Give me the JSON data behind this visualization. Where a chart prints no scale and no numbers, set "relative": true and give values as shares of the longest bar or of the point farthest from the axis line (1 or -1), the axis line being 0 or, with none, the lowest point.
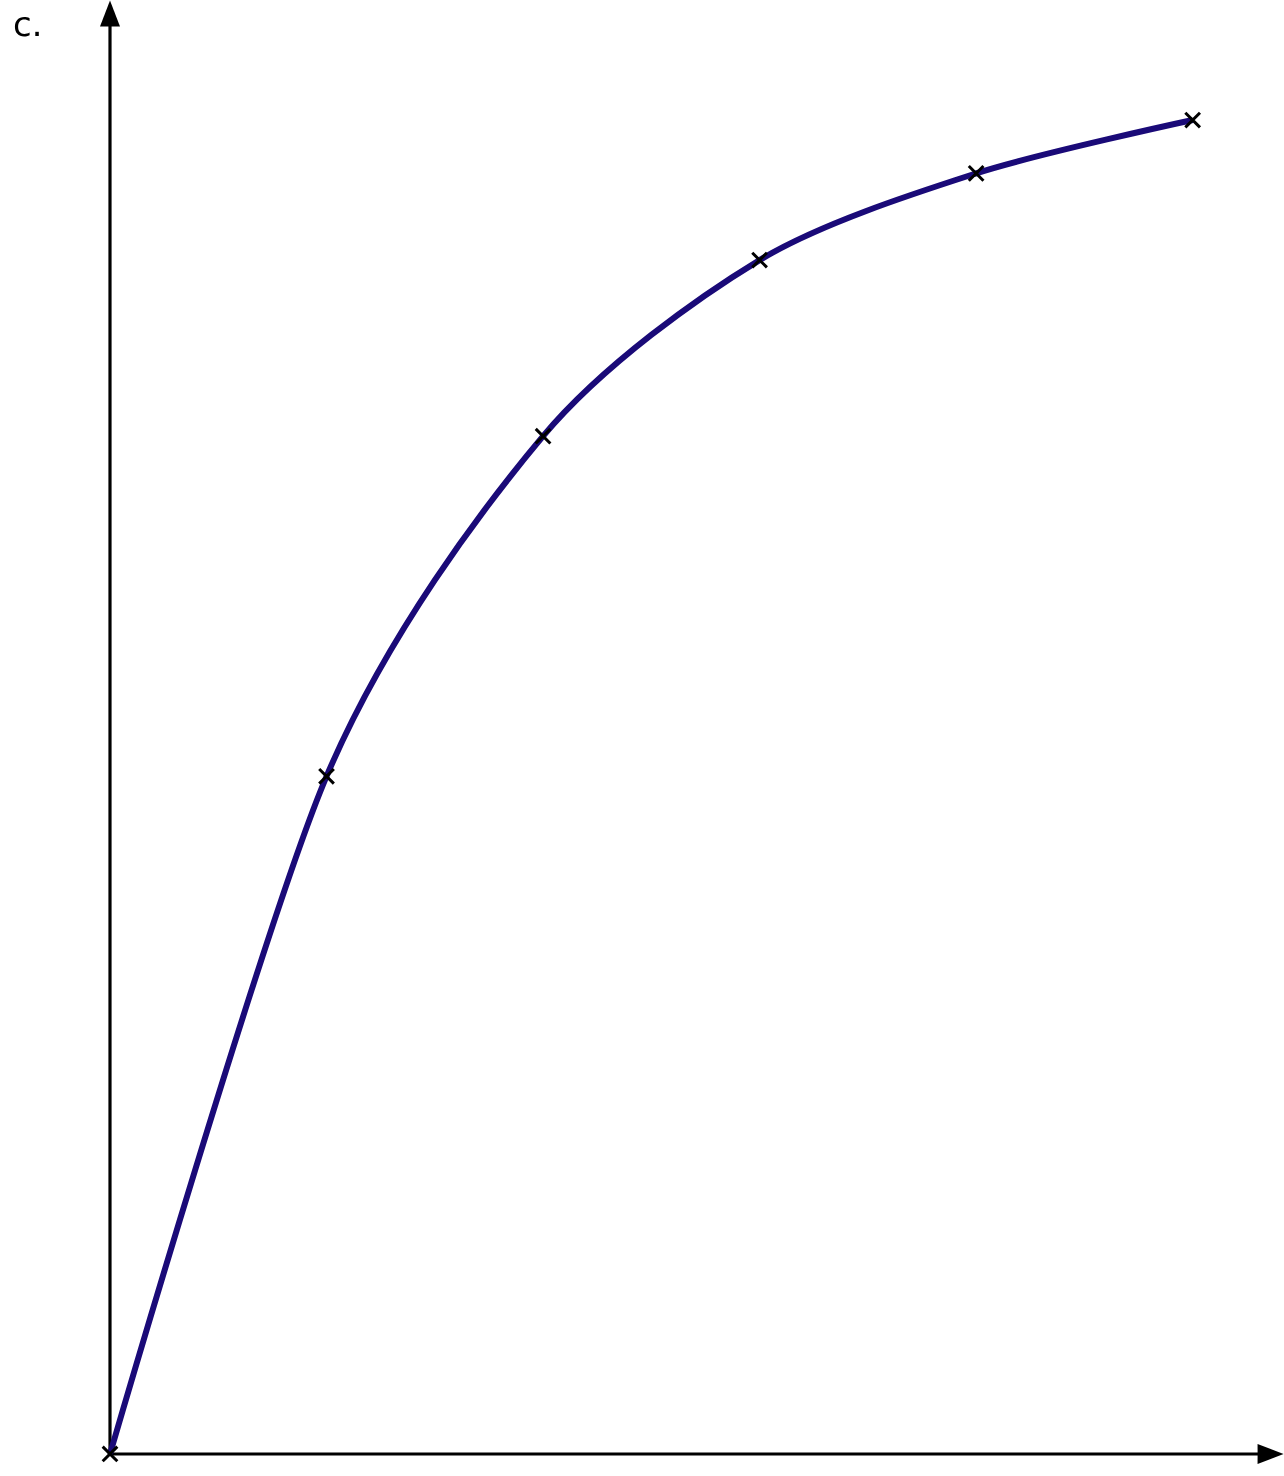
{
  "chart_data": {
    "type": "line",
    "title": "c.",
    "categories": [
      null,
      null,
      null,
      null,
      null,
      null
    ],
    "values": [
      0,
      0.508,
      0.763,
      0.895,
      0.96,
      1
    ],
    "color": "#1a0a78",
    "relative": true,
    "marker": "cross"
  }
}
